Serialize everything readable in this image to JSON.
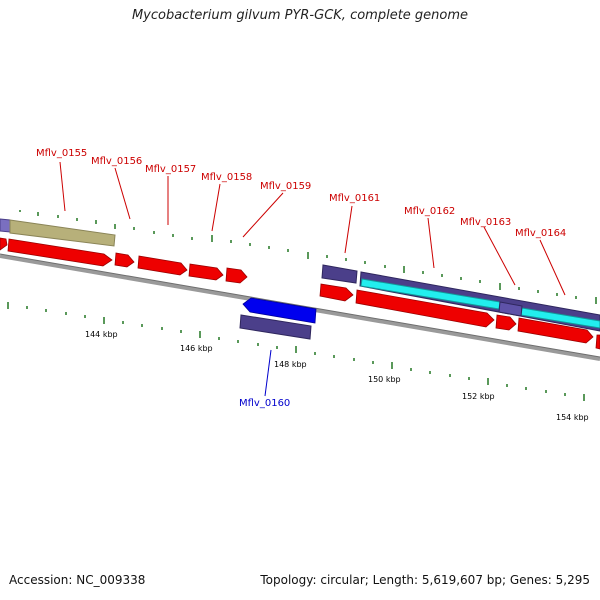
{
  "title": "Mycobacterium gilvum PYR-GCK, complete genome",
  "footer": {
    "accession": "Accession: NC_009338",
    "topology": "Topology: circular; Length: 5,619,607 bp; Genes: 5,295"
  },
  "scale_labels": [
    "144 kbp",
    "146 kbp",
    "148 kbp",
    "150 kbp",
    "152 kbp",
    "154 kbp"
  ],
  "gene_labels": [
    {
      "text": "Mflv_0155",
      "color": "#cc0000"
    },
    {
      "text": "Mflv_0156",
      "color": "#cc0000"
    },
    {
      "text": "Mflv_0157",
      "color": "#cc0000"
    },
    {
      "text": "Mflv_0158",
      "color": "#cc0000"
    },
    {
      "text": "Mflv_0159",
      "color": "#cc0000"
    },
    {
      "text": "Mflv_0161",
      "color": "#cc0000"
    },
    {
      "text": "Mflv_0162",
      "color": "#cc0000"
    },
    {
      "text": "Mflv_0163",
      "color": "#cc0000"
    },
    {
      "text": "Mflv_0164",
      "color": "#cc0000"
    },
    {
      "text": "Mflv_0160",
      "color": "#0000cc"
    }
  ],
  "colors": {
    "forward_cds": "#ee0000",
    "reverse_cds": "#0000ee",
    "feature_purple": "#4b3f8a",
    "feature_khaki": "#b7b07a",
    "feature_cyan": "#22eeee",
    "backbone": "#8c8c8c",
    "tick": "#227722"
  }
}
